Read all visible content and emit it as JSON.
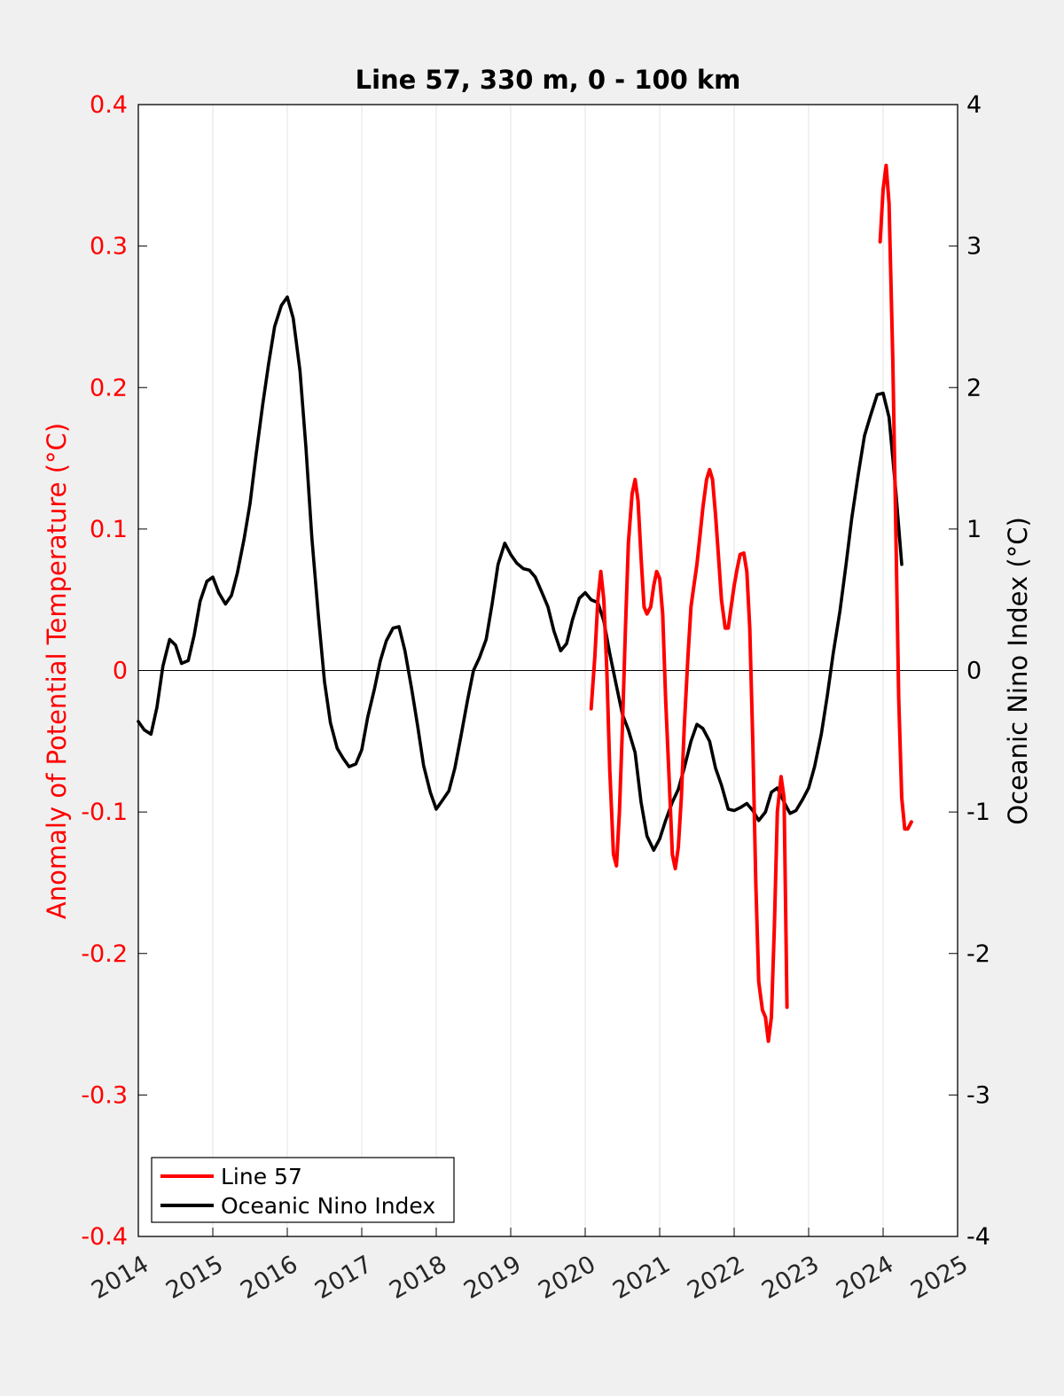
{
  "chart_data": {
    "type": "line",
    "title": "Line 57, 330 m, 0 - 100 km",
    "xlabel": "",
    "ylabel_left": "Anomaly of Potential Temperature (°C)",
    "ylabel_right": "Oceanic Nino Index (°C)",
    "xlim": [
      2014,
      2025
    ],
    "ylim_left": [
      -0.4,
      0.4
    ],
    "ylim_right": [
      -4,
      4
    ],
    "x_ticks": [
      2014,
      2015,
      2016,
      2017,
      2018,
      2019,
      2020,
      2021,
      2022,
      2023,
      2024,
      2025
    ],
    "x_tick_labels": [
      "2014",
      "2015",
      "2016",
      "2017",
      "2018",
      "2019",
      "2020",
      "2021",
      "2022",
      "2023",
      "2024",
      "2025"
    ],
    "y_left_ticks": [
      -0.4,
      -0.3,
      -0.2,
      -0.1,
      0,
      0.1,
      0.2,
      0.3,
      0.4
    ],
    "y_left_tick_labels": [
      "-0.4",
      "-0.3",
      "-0.2",
      "-0.1",
      "0",
      "0.1",
      "0.2",
      "0.3",
      "0.4"
    ],
    "y_right_ticks": [
      -4,
      -3,
      -2,
      -1,
      0,
      1,
      2,
      3,
      4
    ],
    "y_right_tick_labels": [
      "-4",
      "-3",
      "-2",
      "-1",
      "0",
      "1",
      "2",
      "3",
      "4"
    ],
    "grid": "vertical",
    "legend_position": "bottom-left",
    "colors": {
      "line57": "#ff0000",
      "oni": "#000000",
      "left_axis": "#ff0000",
      "right_axis": "#000000"
    },
    "series": [
      {
        "name": "Line 57",
        "axis": "left",
        "segments": [
          [
            [
              2020.08,
              -0.027
            ],
            [
              2020.13,
              0.01
            ],
            [
              2020.17,
              0.05
            ],
            [
              2020.21,
              0.07
            ],
            [
              2020.25,
              0.05
            ],
            [
              2020.29,
              0.0
            ],
            [
              2020.33,
              -0.07
            ],
            [
              2020.38,
              -0.13
            ],
            [
              2020.42,
              -0.138
            ],
            [
              2020.46,
              -0.1
            ],
            [
              2020.5,
              -0.04
            ],
            [
              2020.54,
              0.03
            ],
            [
              2020.58,
              0.09
            ],
            [
              2020.63,
              0.125
            ],
            [
              2020.67,
              0.135
            ],
            [
              2020.71,
              0.12
            ],
            [
              2020.75,
              0.08
            ],
            [
              2020.79,
              0.045
            ],
            [
              2020.83,
              0.04
            ],
            [
              2020.88,
              0.045
            ],
            [
              2020.92,
              0.06
            ],
            [
              2020.96,
              0.07
            ],
            [
              2021.0,
              0.065
            ],
            [
              2021.04,
              0.04
            ],
            [
              2021.08,
              -0.02
            ],
            [
              2021.13,
              -0.08
            ],
            [
              2021.17,
              -0.13
            ],
            [
              2021.21,
              -0.14
            ],
            [
              2021.25,
              -0.125
            ],
            [
              2021.29,
              -0.09
            ],
            [
              2021.33,
              -0.04
            ],
            [
              2021.38,
              0.01
            ],
            [
              2021.42,
              0.045
            ],
            [
              2021.46,
              0.06
            ],
            [
              2021.5,
              0.075
            ],
            [
              2021.54,
              0.095
            ],
            [
              2021.58,
              0.115
            ],
            [
              2021.63,
              0.135
            ],
            [
              2021.67,
              0.142
            ],
            [
              2021.71,
              0.135
            ],
            [
              2021.75,
              0.11
            ],
            [
              2021.79,
              0.08
            ],
            [
              2021.83,
              0.05
            ],
            [
              2021.88,
              0.03
            ],
            [
              2021.92,
              0.03
            ],
            [
              2021.96,
              0.045
            ],
            [
              2022.0,
              0.06
            ],
            [
              2022.04,
              0.072
            ],
            [
              2022.08,
              0.082
            ],
            [
              2022.13,
              0.083
            ],
            [
              2022.17,
              0.07
            ],
            [
              2022.21,
              0.03
            ],
            [
              2022.25,
              -0.05
            ],
            [
              2022.29,
              -0.15
            ],
            [
              2022.33,
              -0.22
            ],
            [
              2022.38,
              -0.24
            ],
            [
              2022.42,
              -0.245
            ],
            [
              2022.46,
              -0.262
            ],
            [
              2022.5,
              -0.245
            ],
            [
              2022.54,
              -0.18
            ],
            [
              2022.58,
              -0.1
            ],
            [
              2022.63,
              -0.075
            ],
            [
              2022.67,
              -0.09
            ],
            [
              2022.71,
              -0.238
            ]
          ],
          [
            [
              2023.96,
              0.303
            ],
            [
              2024.0,
              0.34
            ],
            [
              2024.04,
              0.357
            ],
            [
              2024.08,
              0.33
            ],
            [
              2024.13,
              0.22
            ],
            [
              2024.17,
              0.1
            ],
            [
              2024.21,
              -0.02
            ],
            [
              2024.25,
              -0.09
            ],
            [
              2024.29,
              -0.112
            ],
            [
              2024.33,
              -0.112
            ],
            [
              2024.38,
              -0.107
            ]
          ]
        ]
      },
      {
        "name": "Oceanic Nino Index",
        "axis": "right",
        "x": [
          2014.0,
          2014.08,
          2014.17,
          2014.25,
          2014.33,
          2014.42,
          2014.5,
          2014.58,
          2014.67,
          2014.75,
          2014.83,
          2014.92,
          2015.0,
          2015.08,
          2015.17,
          2015.25,
          2015.33,
          2015.42,
          2015.5,
          2015.58,
          2015.67,
          2015.75,
          2015.83,
          2015.92,
          2016.0,
          2016.08,
          2016.17,
          2016.25,
          2016.33,
          2016.42,
          2016.5,
          2016.58,
          2016.67,
          2016.75,
          2016.83,
          2016.92,
          2017.0,
          2017.08,
          2017.17,
          2017.25,
          2017.33,
          2017.42,
          2017.5,
          2017.58,
          2017.67,
          2017.75,
          2017.83,
          2017.92,
          2018.0,
          2018.08,
          2018.17,
          2018.25,
          2018.33,
          2018.42,
          2018.5,
          2018.58,
          2018.67,
          2018.75,
          2018.83,
          2018.92,
          2019.0,
          2019.08,
          2019.17,
          2019.25,
          2019.33,
          2019.42,
          2019.5,
          2019.58,
          2019.67,
          2019.75,
          2019.83,
          2019.92,
          2020.0,
          2020.08,
          2020.17,
          2020.25,
          2020.33,
          2020.42,
          2020.5,
          2020.58,
          2020.67,
          2020.75,
          2020.83,
          2020.92,
          2021.0,
          2021.08,
          2021.17,
          2021.25,
          2021.33,
          2021.42,
          2021.5,
          2021.58,
          2021.67,
          2021.75,
          2021.83,
          2021.92,
          2022.0,
          2022.08,
          2022.17,
          2022.25,
          2022.33,
          2022.42,
          2022.5,
          2022.58,
          2022.67,
          2022.75,
          2022.83,
          2022.92,
          2023.0,
          2023.08,
          2023.17,
          2023.25,
          2023.33,
          2023.42,
          2023.5,
          2023.58,
          2023.67,
          2023.75,
          2023.83,
          2023.92,
          2024.0,
          2024.08,
          2024.17,
          2024.25
        ],
        "y": [
          -0.36,
          -0.42,
          -0.45,
          -0.26,
          0.03,
          0.22,
          0.18,
          0.05,
          0.07,
          0.25,
          0.49,
          0.63,
          0.66,
          0.55,
          0.47,
          0.53,
          0.69,
          0.93,
          1.18,
          1.52,
          1.88,
          2.17,
          2.43,
          2.58,
          2.64,
          2.49,
          2.12,
          1.58,
          0.94,
          0.37,
          -0.08,
          -0.37,
          -0.55,
          -0.62,
          -0.68,
          -0.66,
          -0.56,
          -0.33,
          -0.13,
          0.07,
          0.21,
          0.3,
          0.31,
          0.14,
          -0.13,
          -0.39,
          -0.67,
          -0.86,
          -0.98,
          -0.92,
          -0.85,
          -0.69,
          -0.47,
          -0.21,
          0.0,
          0.09,
          0.22,
          0.47,
          0.75,
          0.9,
          0.82,
          0.76,
          0.72,
          0.71,
          0.66,
          0.55,
          0.45,
          0.28,
          0.14,
          0.19,
          0.36,
          0.51,
          0.55,
          0.5,
          0.48,
          0.35,
          0.12,
          -0.11,
          -0.31,
          -0.42,
          -0.58,
          -0.93,
          -1.17,
          -1.27,
          -1.19,
          -1.06,
          -0.93,
          -0.84,
          -0.69,
          -0.5,
          -0.38,
          -0.41,
          -0.5,
          -0.69,
          -0.81,
          -0.98,
          -0.99,
          -0.97,
          -0.94,
          -0.99,
          -1.06,
          -1.0,
          -0.86,
          -0.83,
          -0.93,
          -1.01,
          -0.99,
          -0.91,
          -0.83,
          -0.68,
          -0.45,
          -0.18,
          0.12,
          0.42,
          0.74,
          1.08,
          1.4,
          1.66,
          1.8,
          1.95,
          1.96,
          1.79,
          1.27,
          0.75
        ]
      }
    ]
  }
}
